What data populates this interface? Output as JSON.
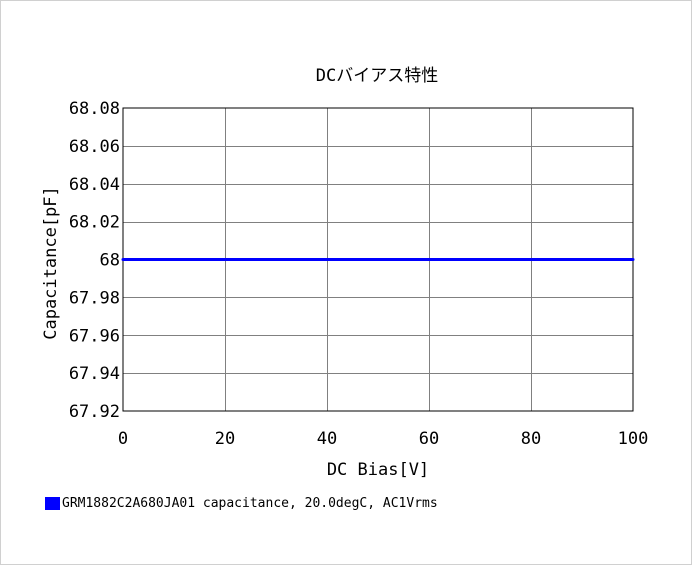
{
  "chart_data": {
    "type": "line",
    "title": "DCバイアス特性",
    "xlabel": "DC Bias[V]",
    "ylabel": "Capacitance[pF]",
    "xlim": [
      0,
      100
    ],
    "ylim": [
      67.92,
      68.08
    ],
    "x_ticks": [
      0,
      20,
      40,
      60,
      80,
      100
    ],
    "y_ticks": [
      67.92,
      67.94,
      67.96,
      67.98,
      68,
      68.02,
      68.04,
      68.06,
      68.08
    ],
    "x_tick_labels": [
      "0",
      "20",
      "40",
      "60",
      "80",
      "100"
    ],
    "y_tick_labels": [
      "67.92",
      "67.94",
      "67.96",
      "67.98",
      "68",
      "68.02",
      "68.04",
      "68.06",
      "68.08"
    ],
    "grid": true,
    "legend_position": "bottom-left",
    "series": [
      {
        "name": "GRM1882C2A680JA01 capacitance, 20.0degC, AC1Vrms",
        "color": "#0000ff",
        "x": [
          0,
          10,
          20,
          30,
          40,
          50,
          60,
          70,
          80,
          90,
          100
        ],
        "y": [
          68,
          68,
          68,
          68,
          68,
          68,
          68,
          68,
          68,
          68,
          68
        ]
      }
    ]
  }
}
